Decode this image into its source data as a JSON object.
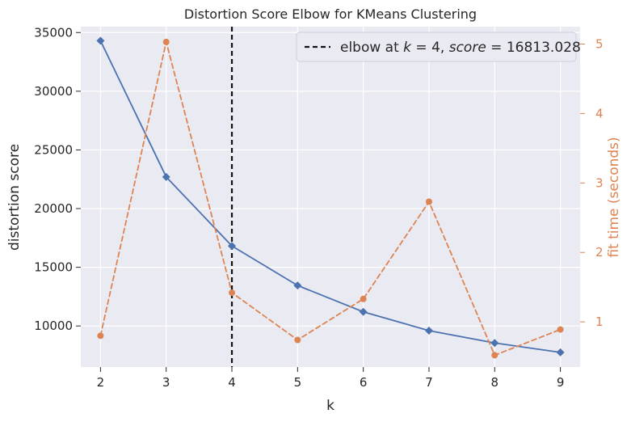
{
  "colors": {
    "plot_background": "#eaeaf2",
    "grid": "#ffffff",
    "distortion_series": "#4c72b0",
    "fit_time_series": "#dd8452",
    "elbow_line": "#111111",
    "text": "#262626"
  },
  "chart_data": {
    "type": "line",
    "title": "Distortion Score Elbow for KMeans Clustering",
    "xlabel": "k",
    "ylabel": "distortion score",
    "y2label": "fit time (seconds)",
    "x": [
      2,
      3,
      4,
      5,
      6,
      7,
      8,
      9
    ],
    "xlim": [
      1.7,
      9.3
    ],
    "ylim": [
      6500,
      35500
    ],
    "y2lim": [
      0.35,
      5.25
    ],
    "x_ticks": [
      2,
      3,
      4,
      5,
      6,
      7,
      8,
      9
    ],
    "y_ticks": [
      10000,
      15000,
      20000,
      25000,
      30000,
      35000
    ],
    "y2_ticks": [
      1,
      2,
      3,
      4,
      5
    ],
    "grid": true,
    "legend_position": "top-right",
    "series": [
      {
        "values": [
          34300,
          22700,
          16813.028,
          13450,
          11200,
          9600,
          8550,
          7750
        ],
        "marker": "diamond",
        "line_style": "solid",
        "axis": "left"
      },
      {
        "values": [
          0.8,
          5.03,
          1.42,
          0.74,
          1.33,
          2.73,
          0.52,
          0.89
        ],
        "marker": "circle",
        "line_style": "dashed",
        "axis": "right"
      }
    ],
    "elbow": {
      "k": 4,
      "score": 16813.028,
      "legend_label": {
        "prefix": "elbow at ",
        "k_symbol": "k",
        "equals_1": " = 4, ",
        "score_symbol": "score",
        "equals_2": " = 16813.028"
      }
    }
  }
}
